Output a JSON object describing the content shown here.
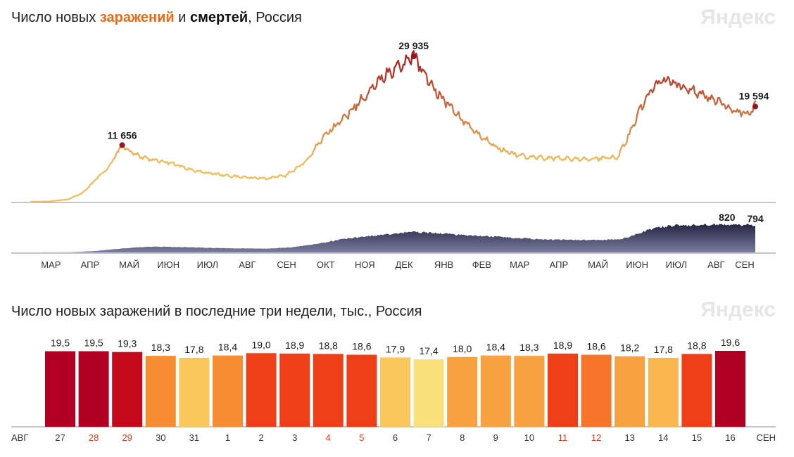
{
  "top": {
    "title_prefix": "Число новых ",
    "title_infections": "заражений",
    "title_mid": " и ",
    "title_deaths": "смертей",
    "title_suffix": ", Россия",
    "logo": "Яндекс"
  },
  "bottom": {
    "title": "Число новых заражений в последние три недели, тыс., Россия",
    "logo": "Яндекс"
  },
  "colors": {
    "infections_low": "#f3be5a",
    "infections_high": "#b0201e",
    "deaths_fill": "#3c3d64",
    "peak_marker": "#9a1420",
    "axis": "#8a8a9a",
    "weekend_label": "#e23c22"
  },
  "chart_data": [
    {
      "type": "line",
      "series": [
        {
          "name": "заражений",
          "x": [
            "2020-03-01",
            "2020-03-15",
            "2020-03-30",
            "2020-04-10",
            "2020-04-20",
            "2020-04-30",
            "2020-05-11",
            "2020-05-20",
            "2020-06-01",
            "2020-06-15",
            "2020-07-01",
            "2020-07-15",
            "2020-08-01",
            "2020-08-15",
            "2020-09-01",
            "2020-09-15",
            "2020-10-01",
            "2020-10-15",
            "2020-11-01",
            "2020-11-15",
            "2020-12-01",
            "2020-12-10",
            "2020-12-24",
            "2021-01-01",
            "2021-01-10",
            "2021-01-20",
            "2021-02-01",
            "2021-02-15",
            "2021-03-01",
            "2021-03-15",
            "2021-04-01",
            "2021-04-15",
            "2021-05-01",
            "2021-05-15",
            "2021-06-01",
            "2021-06-10",
            "2021-06-20",
            "2021-07-01",
            "2021-07-10",
            "2021-07-20",
            "2021-08-01",
            "2021-08-15",
            "2021-09-01",
            "2021-09-10",
            "2021-09-16"
          ],
          "y": [
            10,
            60,
            500,
            1800,
            4500,
            7000,
            11656,
            9800,
            8800,
            8200,
            6800,
            6000,
            5400,
            5000,
            4800,
            5400,
            8200,
            13500,
            17500,
            21500,
            26000,
            27500,
            29935,
            26500,
            23000,
            20000,
            16500,
            13200,
            11000,
            9500,
            9000,
            9000,
            8700,
            8900,
            9200,
            14000,
            20000,
            24500,
            25000,
            24000,
            22500,
            21000,
            18500,
            18300,
            19594
          ]
        },
        {
          "name": "смертей",
          "x": [
            "2020-03-01",
            "2020-04-01",
            "2020-04-20",
            "2020-05-10",
            "2020-06-01",
            "2020-07-01",
            "2020-08-01",
            "2020-09-01",
            "2020-09-20",
            "2020-10-10",
            "2020-11-01",
            "2020-11-20",
            "2020-12-10",
            "2020-12-24",
            "2021-01-10",
            "2021-02-01",
            "2021-03-01",
            "2021-04-01",
            "2021-05-01",
            "2021-05-20",
            "2021-06-01",
            "2021-06-10",
            "2021-06-20",
            "2021-07-01",
            "2021-07-15",
            "2021-08-01",
            "2021-08-10",
            "2021-08-25",
            "2021-09-10",
            "2021-09-16"
          ],
          "y": [
            0,
            5,
            40,
            110,
            170,
            150,
            120,
            110,
            150,
            250,
            400,
            470,
            560,
            600,
            560,
            500,
            450,
            380,
            360,
            370,
            380,
            450,
            600,
            720,
            780,
            790,
            808,
            820,
            800,
            794
          ]
        }
      ],
      "xlabels": [
        "МАР",
        "АПР",
        "МАЙ",
        "ИЮН",
        "ИЮЛ",
        "АВГ",
        "СЕН",
        "ОКТ",
        "НОЯ",
        "ДЕК",
        "ЯНВ",
        "ФЕВ",
        "МАР",
        "АПР",
        "МАЙ",
        "ИЮН",
        "ИЮЛ",
        "АВГ",
        "СЕН"
      ],
      "annotations": [
        "11 656",
        "29 935",
        "19 594",
        "820",
        "794"
      ]
    },
    {
      "type": "bar",
      "categories": [
        "27",
        "28",
        "29",
        "30",
        "31",
        "1",
        "2",
        "3",
        "4",
        "5",
        "6",
        "7",
        "8",
        "9",
        "10",
        "11",
        "12",
        "13",
        "14",
        "15",
        "16"
      ],
      "values": [
        19.5,
        19.5,
        19.3,
        18.3,
        17.8,
        18.4,
        19.0,
        18.9,
        18.8,
        18.6,
        17.9,
        17.4,
        18.0,
        18.4,
        18.3,
        18.9,
        18.6,
        18.2,
        17.8,
        18.8,
        19.6
      ],
      "value_labels": [
        "19,5",
        "19,5",
        "19,3",
        "18,3",
        "17,8",
        "18,4",
        "19,0",
        "18,9",
        "18,8",
        "18,6",
        "17,9",
        "17,4",
        "18,0",
        "18,4",
        "18,3",
        "18,9",
        "18,6",
        "18,2",
        "17,8",
        "18,8",
        "19,6"
      ],
      "bar_colors": [
        "#b20022",
        "#b20022",
        "#c40a1a",
        "#f78d33",
        "#fbc75c",
        "#f78d33",
        "#ee3f18",
        "#ee3f18",
        "#ee3f18",
        "#ee3f18",
        "#fbc75c",
        "#f9e07a",
        "#f8a140",
        "#f8a140",
        "#f8a140",
        "#ee3f18",
        "#f6752a",
        "#f8a140",
        "#fbb74f",
        "#ee3f18",
        "#b20022"
      ],
      "weekend_categories": [
        "28",
        "29",
        "4",
        "5",
        "11",
        "12"
      ],
      "month_start": "АВГ",
      "month_end": "СЕН"
    }
  ]
}
